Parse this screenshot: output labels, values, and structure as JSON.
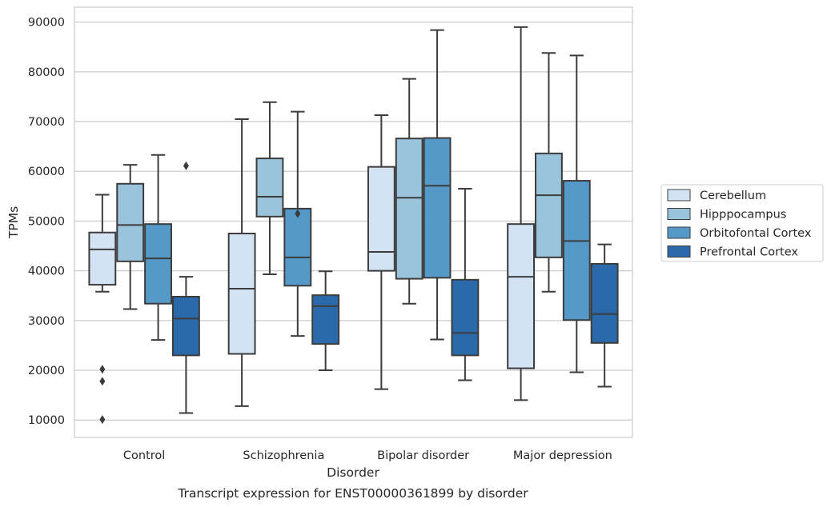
{
  "chart_data": {
    "type": "boxplot",
    "categories": [
      "Control",
      "Schizophrenia",
      "Bipolar disorder",
      "Major depression"
    ],
    "xlabel": "Disorder",
    "ylabel": "TPMs",
    "caption": "Transcript expression for ENST00000361899 by disorder",
    "ylim": [
      6500,
      93000
    ],
    "yticks": [
      10000,
      20000,
      30000,
      40000,
      50000,
      60000,
      70000,
      80000,
      90000
    ],
    "ytick_labels": [
      "10000",
      "20000",
      "30000",
      "40000",
      "50000",
      "60000",
      "70000",
      "80000",
      "90000"
    ],
    "grid": "horizontal",
    "legend_position": "right",
    "series": [
      {
        "name": "Cerebellum",
        "color": "#d4e3f3",
        "boxes": [
          {
            "whisker_low": 35800,
            "q1": 37200,
            "median": 44300,
            "q3": 47700,
            "whisker_high": 55300,
            "outliers": [
              20200,
              17800,
              10100
            ]
          },
          {
            "whisker_low": 12800,
            "q1": 23300,
            "median": 36400,
            "q3": 47500,
            "whisker_high": 70500,
            "outliers": []
          },
          {
            "whisker_low": 16200,
            "q1": 40000,
            "median": 43800,
            "q3": 60900,
            "whisker_high": 71300,
            "outliers": []
          },
          {
            "whisker_low": 14000,
            "q1": 20400,
            "median": 38800,
            "q3": 49400,
            "whisker_high": 89000,
            "outliers": []
          }
        ]
      },
      {
        "name": "Hipppocampus",
        "color": "#9ac3dc",
        "boxes": [
          {
            "whisker_low": 32300,
            "q1": 41900,
            "median": 49200,
            "q3": 57500,
            "whisker_high": 61300,
            "outliers": []
          },
          {
            "whisker_low": 39300,
            "q1": 50900,
            "median": 54900,
            "q3": 62600,
            "whisker_high": 73900,
            "outliers": []
          },
          {
            "whisker_low": 33400,
            "q1": 38400,
            "median": 54700,
            "q3": 66600,
            "whisker_high": 78600,
            "outliers": []
          },
          {
            "whisker_low": 35800,
            "q1": 42700,
            "median": 55200,
            "q3": 63600,
            "whisker_high": 83800,
            "outliers": []
          }
        ]
      },
      {
        "name": "Orbitofontal Cortex",
        "color": "#5599c8",
        "boxes": [
          {
            "whisker_low": 26100,
            "q1": 33400,
            "median": 42500,
            "q3": 49400,
            "whisker_high": 63300,
            "outliers": []
          },
          {
            "whisker_low": 26900,
            "q1": 37000,
            "median": 42700,
            "q3": 52500,
            "whisker_high": 72000,
            "outliers": [
              51500
            ]
          },
          {
            "whisker_low": 26200,
            "q1": 38600,
            "median": 57100,
            "q3": 66700,
            "whisker_high": 88400,
            "outliers": []
          },
          {
            "whisker_low": 19600,
            "q1": 30100,
            "median": 46000,
            "q3": 58100,
            "whisker_high": 83300,
            "outliers": []
          }
        ]
      },
      {
        "name": "Prefrontal Cortex",
        "color": "#2a69aa",
        "boxes": [
          {
            "whisker_low": 11400,
            "q1": 23000,
            "median": 30400,
            "q3": 34800,
            "whisker_high": 38800,
            "outliers": [
              61100
            ]
          },
          {
            "whisker_low": 20000,
            "q1": 25300,
            "median": 32900,
            "q3": 35100,
            "whisker_high": 39900,
            "outliers": []
          },
          {
            "whisker_low": 18000,
            "q1": 23000,
            "median": 27500,
            "q3": 38200,
            "whisker_high": 56500,
            "outliers": []
          },
          {
            "whisker_low": 16700,
            "q1": 25500,
            "median": 31300,
            "q3": 41400,
            "whisker_high": 45300,
            "outliers": []
          }
        ]
      }
    ]
  }
}
